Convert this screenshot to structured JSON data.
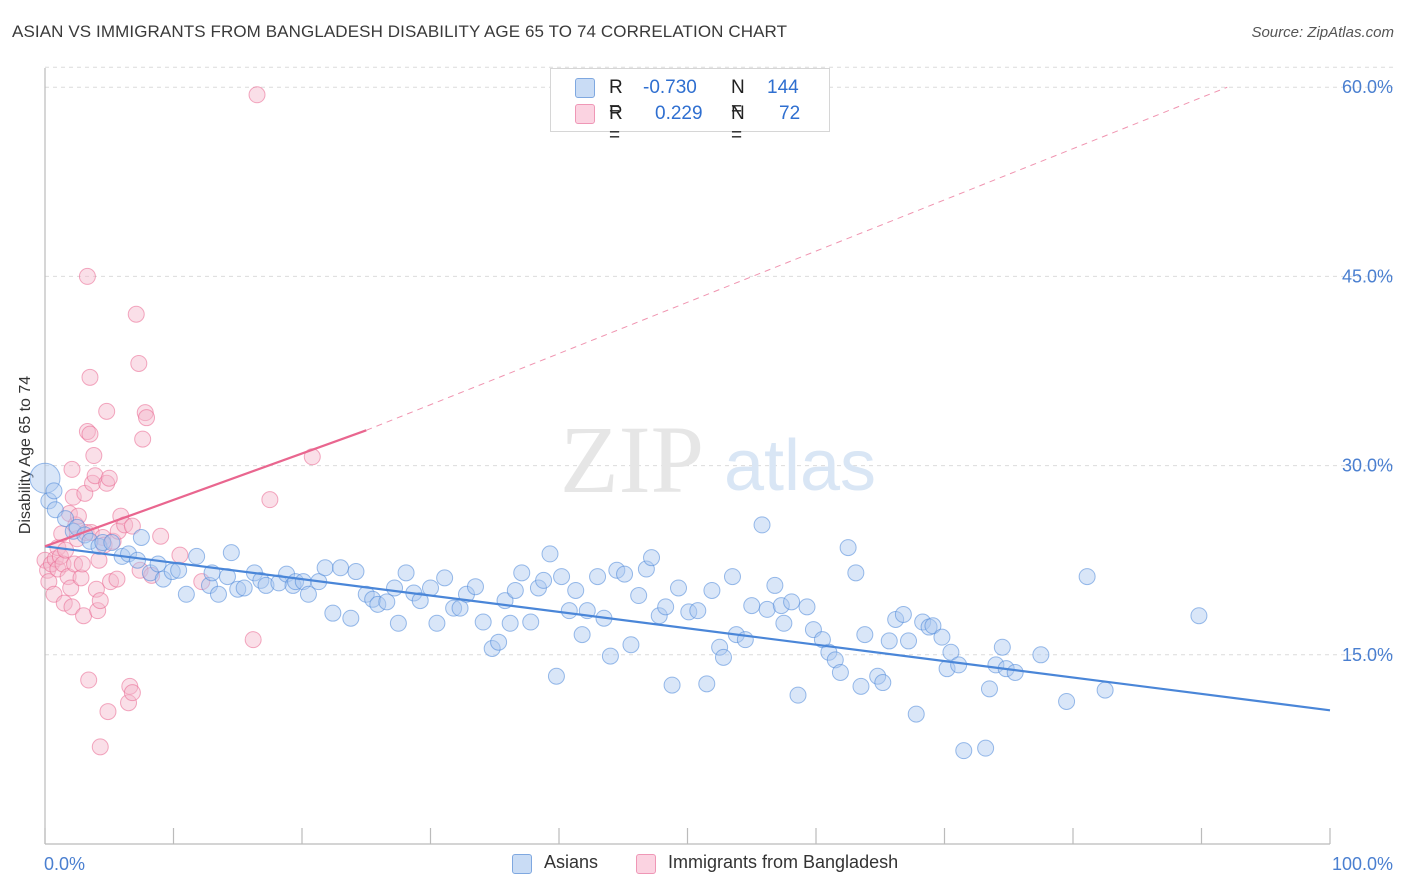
{
  "title": "ASIAN VS IMMIGRANTS FROM BANGLADESH DISABILITY AGE 65 TO 74 CORRELATION CHART",
  "source": "Source: ZipAtlas.com",
  "watermark": {
    "zip": "ZIP",
    "atlas": "atlas"
  },
  "legend_top": {
    "rows": [
      {
        "r_label": "R =",
        "r_value": "-0.730",
        "n_label": "N =",
        "n_value": "144",
        "color": "#aac8f0"
      },
      {
        "r_label": "R =",
        "r_value": "0.229",
        "n_label": "N =",
        "n_value": "72",
        "color": "#f5b8cd"
      }
    ]
  },
  "legend_bottom": {
    "items": [
      {
        "label": "Asians",
        "color": "#aac8f0"
      },
      {
        "label": "Immigrants from Bangladesh",
        "color": "#f5b8cd"
      }
    ]
  },
  "chart_data": {
    "type": "scatter",
    "title": "ASIAN VS IMMIGRANTS FROM BANGLADESH DISABILITY AGE 65 TO 74 CORRELATION CHART",
    "xlabel": "",
    "ylabel": "Disability Age 65 to 74",
    "xlim": [
      0,
      100
    ],
    "ylim": [
      0,
      62
    ],
    "x_tick_labels": [
      "0.0%",
      "100.0%"
    ],
    "y_tick_labels": [
      "15.0%",
      "30.0%",
      "45.0%",
      "60.0%"
    ],
    "y_ticks": [
      15,
      30,
      45,
      60
    ],
    "grid": true,
    "legend_position": "top-center",
    "colors": {
      "asians": "#4a86d8",
      "asians_fill": "#aac8f0",
      "bangladesh": "#e9668f",
      "bangladesh_fill": "#f5b8cd",
      "tick_label": "#4a7fd0"
    },
    "series": [
      {
        "name": "Asians",
        "trend": {
          "x": [
            0,
            100
          ],
          "y": [
            23.6,
            10.6
          ]
        },
        "points": [
          [
            0,
            29
          ],
          [
            0.3,
            27.2
          ],
          [
            0.8,
            26.5
          ],
          [
            1.6,
            25.8
          ],
          [
            2.2,
            24.8
          ],
          [
            2.5,
            25.1
          ],
          [
            3.1,
            24.5
          ],
          [
            3.5,
            24
          ],
          [
            4.2,
            23.6
          ],
          [
            4.5,
            23.9
          ],
          [
            5.2,
            23.9
          ],
          [
            6,
            22.8
          ],
          [
            6.5,
            23
          ],
          [
            7.2,
            22.5
          ],
          [
            7.5,
            24.3
          ],
          [
            8.2,
            21.5
          ],
          [
            8.8,
            22.2
          ],
          [
            9.2,
            21
          ],
          [
            9.9,
            21.6
          ],
          [
            10.4,
            21.7
          ],
          [
            11,
            19.8
          ],
          [
            11.8,
            22.8
          ],
          [
            12.8,
            20.5
          ],
          [
            13,
            21.5
          ],
          [
            13.5,
            19.8
          ],
          [
            14.2,
            21.2
          ],
          [
            14.5,
            23.1
          ],
          [
            15,
            20.2
          ],
          [
            15.5,
            20.3
          ],
          [
            16.3,
            21.5
          ],
          [
            16.8,
            20.9
          ],
          [
            17.2,
            20.5
          ],
          [
            18.2,
            20.7
          ],
          [
            18.8,
            21.4
          ],
          [
            19.3,
            20.5
          ],
          [
            19.5,
            20.8
          ],
          [
            20.1,
            20.8
          ],
          [
            20.5,
            19.8
          ],
          [
            21.3,
            20.8
          ],
          [
            21.8,
            21.9
          ],
          [
            22.4,
            18.3
          ],
          [
            23,
            21.9
          ],
          [
            23.8,
            17.9
          ],
          [
            24.2,
            21.6
          ],
          [
            25,
            19.8
          ],
          [
            25.5,
            19.4
          ],
          [
            25.9,
            19
          ],
          [
            26.6,
            19.2
          ],
          [
            27.2,
            20.3
          ],
          [
            27.5,
            17.5
          ],
          [
            28.1,
            21.5
          ],
          [
            28.7,
            19.9
          ],
          [
            29.2,
            19.3
          ],
          [
            30,
            20.3
          ],
          [
            30.5,
            17.5
          ],
          [
            31.1,
            21.1
          ],
          [
            31.8,
            18.7
          ],
          [
            32.3,
            18.7
          ],
          [
            32.8,
            19.8
          ],
          [
            33.5,
            20.4
          ],
          [
            34.1,
            17.6
          ],
          [
            34.8,
            15.5
          ],
          [
            35.3,
            16
          ],
          [
            35.8,
            19.3
          ],
          [
            36.2,
            17.5
          ],
          [
            36.6,
            20.1
          ],
          [
            37.1,
            21.5
          ],
          [
            37.8,
            17.6
          ],
          [
            38.4,
            20.3
          ],
          [
            38.8,
            20.9
          ],
          [
            39.3,
            23
          ],
          [
            39.8,
            13.3
          ],
          [
            40.2,
            21.2
          ],
          [
            40.8,
            18.5
          ],
          [
            41.3,
            20.1
          ],
          [
            41.8,
            16.6
          ],
          [
            42.2,
            18.5
          ],
          [
            43,
            21.2
          ],
          [
            43.5,
            17.9
          ],
          [
            44,
            14.9
          ],
          [
            44.5,
            21.7
          ],
          [
            45.1,
            21.4
          ],
          [
            45.6,
            15.8
          ],
          [
            46.2,
            19.7
          ],
          [
            46.8,
            21.8
          ],
          [
            47.2,
            22.7
          ],
          [
            47.8,
            18.1
          ],
          [
            48.3,
            18.8
          ],
          [
            48.8,
            12.6
          ],
          [
            49.3,
            20.3
          ],
          [
            50.1,
            18.4
          ],
          [
            50.8,
            18.5
          ],
          [
            51.5,
            12.7
          ],
          [
            51.9,
            20.1
          ],
          [
            52.5,
            15.6
          ],
          [
            52.8,
            14.8
          ],
          [
            53.5,
            21.2
          ],
          [
            53.8,
            16.6
          ],
          [
            54.5,
            16.2
          ],
          [
            55,
            18.9
          ],
          [
            55.8,
            25.3
          ],
          [
            56.2,
            18.6
          ],
          [
            56.8,
            20.5
          ],
          [
            57.3,
            18.9
          ],
          [
            57.5,
            17.5
          ],
          [
            58.1,
            19.2
          ],
          [
            58.6,
            11.8
          ],
          [
            59.3,
            18.8
          ],
          [
            59.8,
            17
          ],
          [
            60.5,
            16.2
          ],
          [
            61,
            15.2
          ],
          [
            61.5,
            14.6
          ],
          [
            61.9,
            13.6
          ],
          [
            62.5,
            23.5
          ],
          [
            63.1,
            21.5
          ],
          [
            63.5,
            12.5
          ],
          [
            63.8,
            16.6
          ],
          [
            64.8,
            13.3
          ],
          [
            65.2,
            12.8
          ],
          [
            65.7,
            16.1
          ],
          [
            66.2,
            17.8
          ],
          [
            66.8,
            18.2
          ],
          [
            67.2,
            16.1
          ],
          [
            67.8,
            10.3
          ],
          [
            68.3,
            17.6
          ],
          [
            68.8,
            17.2
          ],
          [
            69.1,
            17.3
          ],
          [
            69.8,
            16.4
          ],
          [
            70.2,
            13.9
          ],
          [
            70.5,
            15.2
          ],
          [
            71.1,
            14.2
          ],
          [
            71.5,
            7.4
          ],
          [
            73.2,
            7.6
          ],
          [
            73.5,
            12.3
          ],
          [
            74,
            14.2
          ],
          [
            74.5,
            15.6
          ],
          [
            74.8,
            13.9
          ],
          [
            75.5,
            13.6
          ],
          [
            77.5,
            15
          ],
          [
            79.5,
            11.3
          ],
          [
            81.1,
            21.2
          ],
          [
            82.5,
            12.2
          ],
          [
            89.8,
            18.1
          ],
          [
            0.7,
            28
          ]
        ]
      },
      {
        "name": "Immigrants from Bangladesh",
        "trend": {
          "x": [
            0,
            25
          ],
          "y": [
            23.6,
            32.8
          ]
        },
        "trend_extended": {
          "x": [
            25,
            92
          ],
          "y": [
            32.8,
            60
          ]
        },
        "points": [
          [
            0,
            22.5
          ],
          [
            0.2,
            21.7
          ],
          [
            0.3,
            20.8
          ],
          [
            0.5,
            22.2
          ],
          [
            0.7,
            19.8
          ],
          [
            0.8,
            22.6
          ],
          [
            1,
            23.5
          ],
          [
            1,
            21.8
          ],
          [
            1.2,
            22.8
          ],
          [
            1.3,
            24.6
          ],
          [
            1.4,
            22.2
          ],
          [
            1.5,
            19.1
          ],
          [
            1.6,
            23.3
          ],
          [
            1.8,
            21.2
          ],
          [
            1.9,
            26.2
          ],
          [
            2,
            20.3
          ],
          [
            2.1,
            18.8
          ],
          [
            2.1,
            29.7
          ],
          [
            2.2,
            27.5
          ],
          [
            2.3,
            22.2
          ],
          [
            2.4,
            25.3
          ],
          [
            2.5,
            24.2
          ],
          [
            2.6,
            26
          ],
          [
            2.8,
            21.1
          ],
          [
            2.9,
            22.2
          ],
          [
            3,
            18.1
          ],
          [
            3.1,
            27.8
          ],
          [
            3.2,
            24.7
          ],
          [
            3.3,
            45
          ],
          [
            3.3,
            32.7
          ],
          [
            3.4,
            13
          ],
          [
            3.5,
            32.5
          ],
          [
            3.5,
            37
          ],
          [
            3.6,
            24.7
          ],
          [
            3.7,
            28.6
          ],
          [
            3.8,
            30.8
          ],
          [
            3.9,
            29.2
          ],
          [
            4,
            20.2
          ],
          [
            4.1,
            18.5
          ],
          [
            4.2,
            22.5
          ],
          [
            4.3,
            19.3
          ],
          [
            4.3,
            7.7
          ],
          [
            4.5,
            24.3
          ],
          [
            4.6,
            23.7
          ],
          [
            4.8,
            28.6
          ],
          [
            4.8,
            34.3
          ],
          [
            4.9,
            10.5
          ],
          [
            5,
            29
          ],
          [
            5.1,
            20.8
          ],
          [
            5.3,
            24
          ],
          [
            5.6,
            21
          ],
          [
            5.7,
            24.8
          ],
          [
            5.9,
            26
          ],
          [
            6.2,
            25.3
          ],
          [
            6.5,
            11.2
          ],
          [
            6.6,
            12.5
          ],
          [
            6.8,
            12
          ],
          [
            6.8,
            25.2
          ],
          [
            7.1,
            42
          ],
          [
            7.3,
            38.1
          ],
          [
            7.4,
            21.7
          ],
          [
            7.6,
            32.1
          ],
          [
            7.8,
            34.2
          ],
          [
            7.9,
            33.8
          ],
          [
            8.3,
            21.3
          ],
          [
            9,
            24.4
          ],
          [
            10.5,
            22.9
          ],
          [
            12.2,
            20.8
          ],
          [
            16.2,
            16.2
          ],
          [
            16.5,
            59.4
          ],
          [
            17.5,
            27.3
          ],
          [
            20.8,
            30.7
          ]
        ]
      }
    ]
  }
}
